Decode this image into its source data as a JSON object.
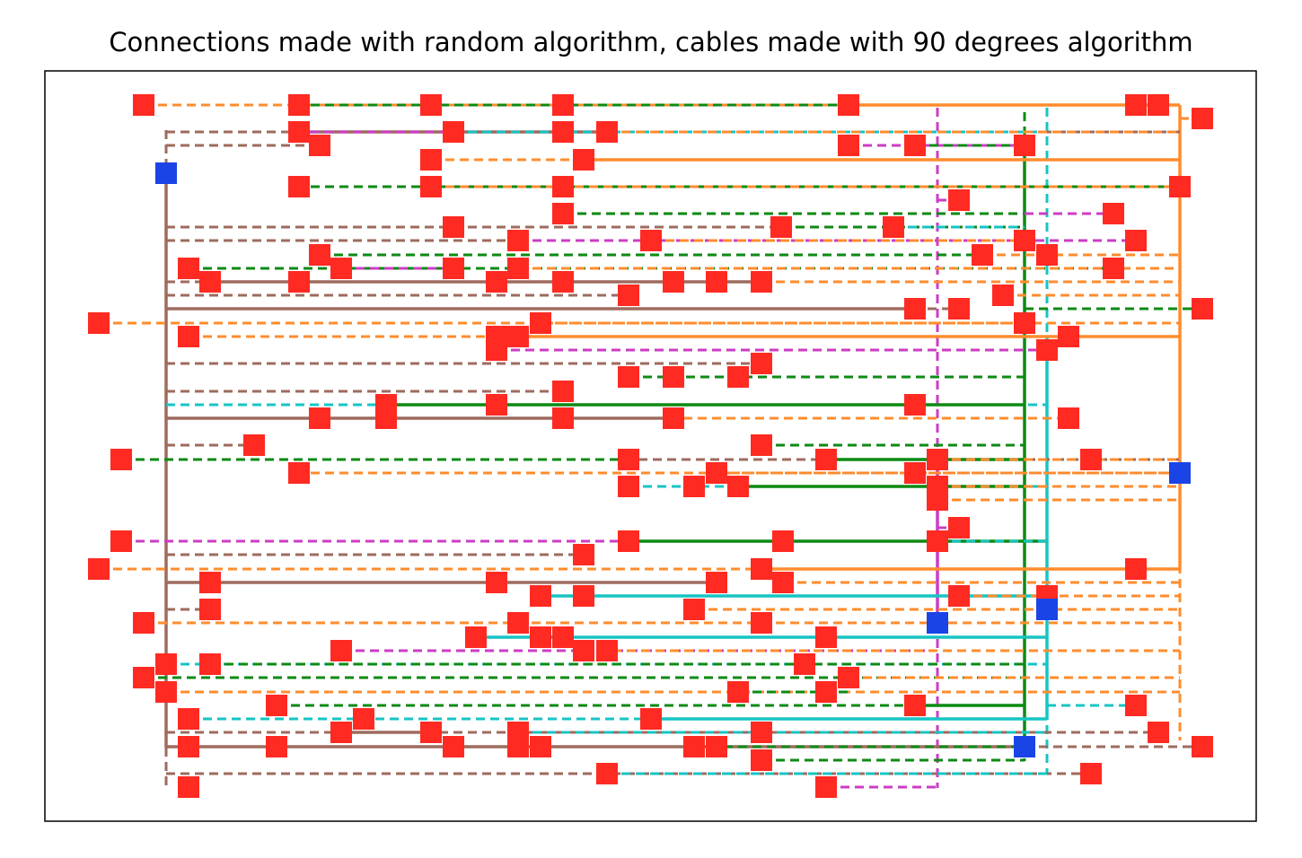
{
  "title": "Connections made with random algorithm, cables made with 90 degrees algorithm",
  "colors": {
    "device": "#ff2a22",
    "hub": "#1a44e6",
    "brown": "#9e6b5e",
    "orange": "#ff8c2e",
    "green": "#0d8a14",
    "cyan": "#17c4c4",
    "magenta": "#cc3dc4",
    "frame": "#000000"
  }
}
